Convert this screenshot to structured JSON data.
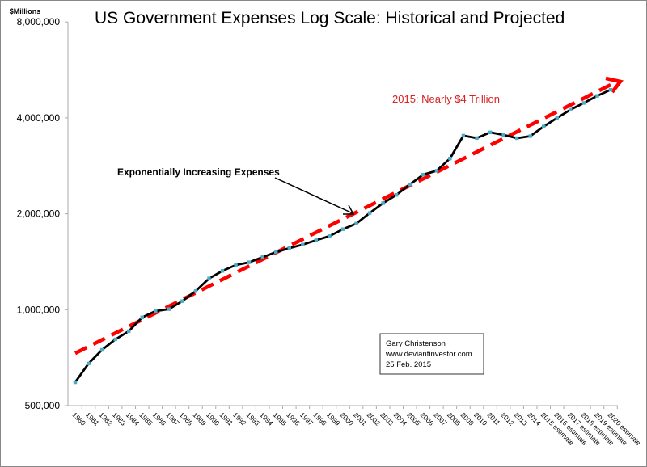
{
  "chart_data": {
    "type": "line",
    "title": "US Government Expenses Log Scale:  Historical and Projected",
    "ylabel": "$Millions",
    "yscale": "log2",
    "ylim": [
      500000,
      8000000
    ],
    "yticks": [
      500000,
      1000000,
      2000000,
      4000000,
      8000000
    ],
    "ytick_labels": [
      "500,000",
      "1,000,000",
      "2,000,000",
      "4,000,000",
      "8,000,000"
    ],
    "grid": false,
    "categories": [
      "1980",
      "1981",
      "1982",
      "1983",
      "1984",
      "1985",
      "1986",
      "1987",
      "1988",
      "1989",
      "1990",
      "1991",
      "1992",
      "1993",
      "1994",
      "1995",
      "1996",
      "1997",
      "1998",
      "1999",
      "2000",
      "2001",
      "2002",
      "2003",
      "2004",
      "2005",
      "2006",
      "2007",
      "2008",
      "2009",
      "2010",
      "2011",
      "2012",
      "2013",
      "2014",
      "2015 estimate",
      "2016 estimate",
      "2017 estimate",
      "2018 estimate",
      "2019 estimate",
      "2020 estimate"
    ],
    "series": [
      {
        "values": [
          592000,
          678000,
          748000,
          807000,
          856000,
          946000,
          990000,
          1004000,
          1064000,
          1144000,
          1253000,
          1324000,
          1381000,
          1409000,
          1462000,
          1516000,
          1560000,
          1601000,
          1652000,
          1702000,
          1789000,
          1863000,
          2011000,
          2160000,
          2293000,
          2472000,
          2655000,
          2729000,
          2983000,
          3518000,
          3457000,
          3603000,
          3537000,
          3455000,
          3506000,
          3759000,
          3999000,
          4244000,
          4455000,
          4690000,
          4900000
        ],
        "color": "#000000",
        "marker_color": "#4bacc6"
      }
    ],
    "trendline": {
      "style": "dashed-arrow",
      "color": "#ff0000",
      "start_value": 730000,
      "end_value": 5200000
    },
    "annotations": {
      "arrow_label": "Exponentially Increasing Expenses",
      "highlight": "2015:  Nearly $4 Trillion",
      "credit": [
        "Gary Christenson",
        "www.deviantinvestor.com",
        "25 Feb. 2015"
      ]
    }
  }
}
